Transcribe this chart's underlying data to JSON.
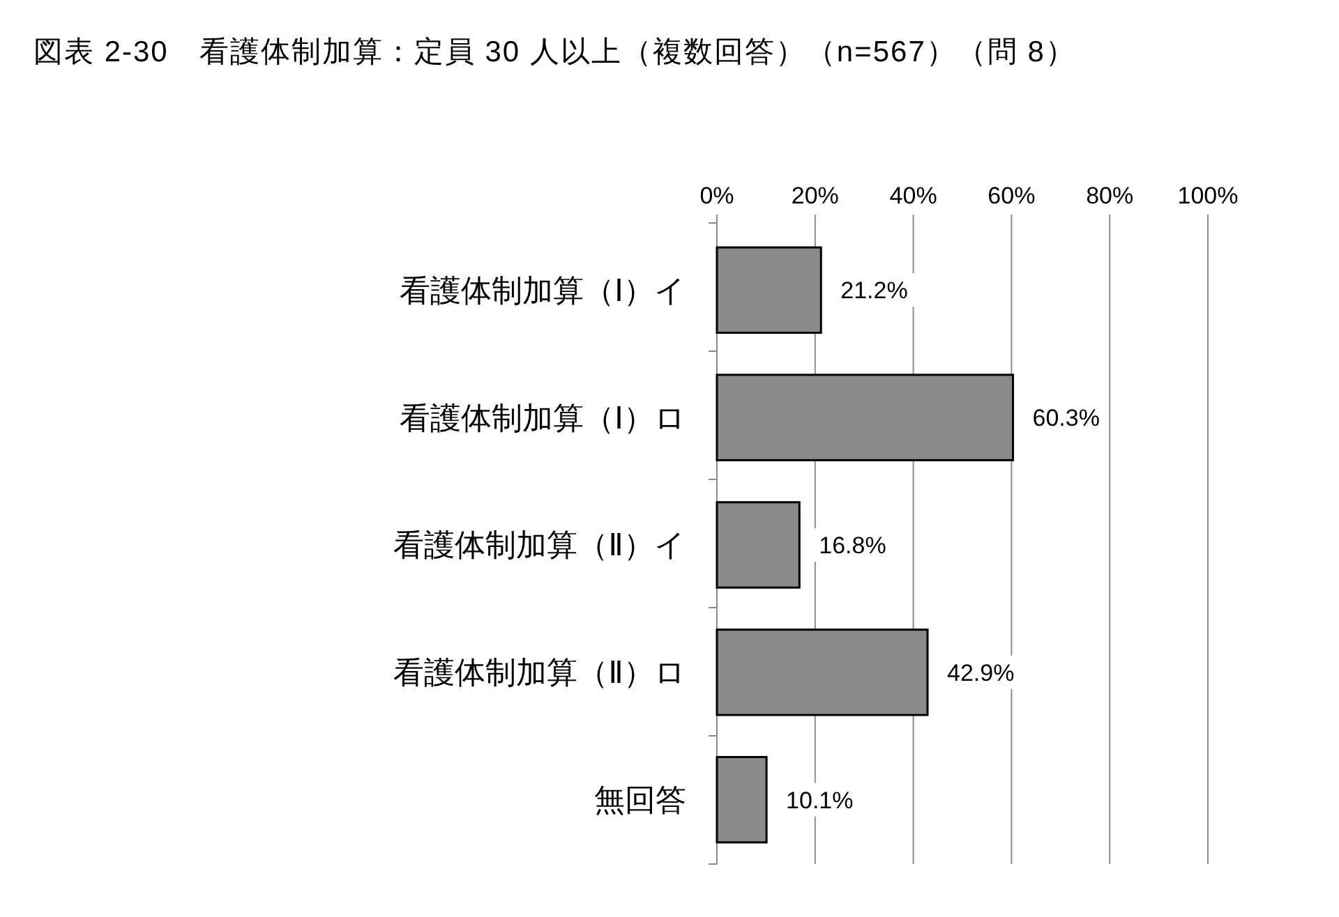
{
  "chart_data": {
    "type": "bar",
    "orientation": "horizontal",
    "title": "図表 2-30　看護体制加算：定員 30 人以上（複数回答）（n=567）（問 8）",
    "categories": [
      "看護体制加算（Ⅰ）イ",
      "看護体制加算（Ⅰ）ロ",
      "看護体制加算（Ⅱ）イ",
      "看護体制加算（Ⅱ）ロ",
      "無回答"
    ],
    "values": [
      21.2,
      60.3,
      16.8,
      42.9,
      10.1
    ],
    "value_labels": [
      "21.2%",
      "60.3%",
      "16.8%",
      "42.9%",
      "10.1%"
    ],
    "color": "#8a8a8a",
    "xlim": [
      0,
      100
    ],
    "xticks": [
      {
        "value": 0,
        "label": "0%"
      },
      {
        "value": 20,
        "label": "20%"
      },
      {
        "value": 40,
        "label": "40%"
      },
      {
        "value": 60,
        "label": "60%"
      },
      {
        "value": 80,
        "label": "80%"
      },
      {
        "value": 100,
        "label": "100%"
      }
    ],
    "grid": "x"
  }
}
